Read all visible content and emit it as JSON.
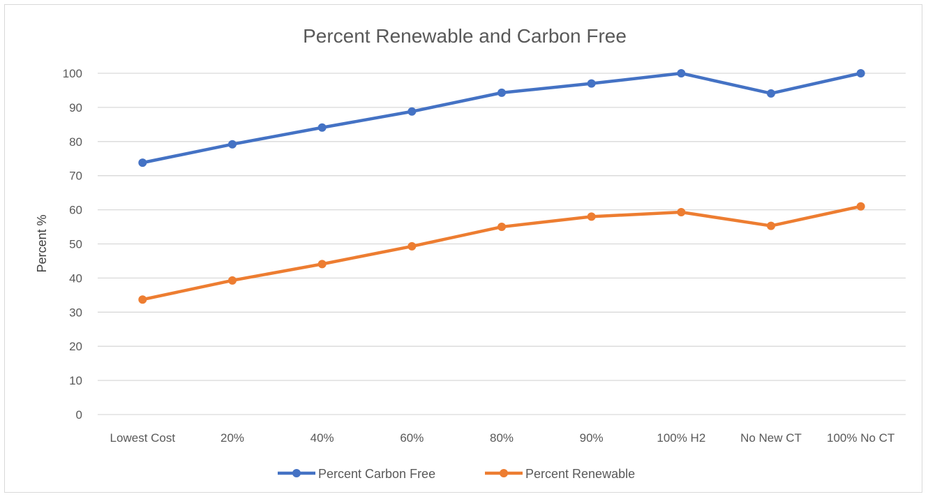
{
  "chart_data": {
    "type": "line",
    "title": "Percent Renewable and Carbon Free",
    "xlabel": "",
    "ylabel": "Percent %",
    "categories": [
      "Lowest Cost",
      "20%",
      "40%",
      "60%",
      "80%",
      "90%",
      "100% H2",
      "No New CT",
      "100% No CT"
    ],
    "ylim": [
      0,
      100
    ],
    "yticks": [
      0,
      10,
      20,
      30,
      40,
      50,
      60,
      70,
      80,
      90,
      100
    ],
    "grid": true,
    "legend_position": "bottom",
    "series": [
      {
        "name": "Percent Carbon Free",
        "color": "#4472c4",
        "values": [
          73.8,
          79.2,
          84.1,
          88.8,
          94.3,
          97.0,
          100,
          94.1,
          100
        ]
      },
      {
        "name": "Percent Renewable",
        "color": "#ed7d31",
        "values": [
          33.7,
          39.3,
          44.1,
          49.3,
          55.0,
          58.0,
          59.3,
          55.3,
          61.0
        ]
      }
    ]
  }
}
